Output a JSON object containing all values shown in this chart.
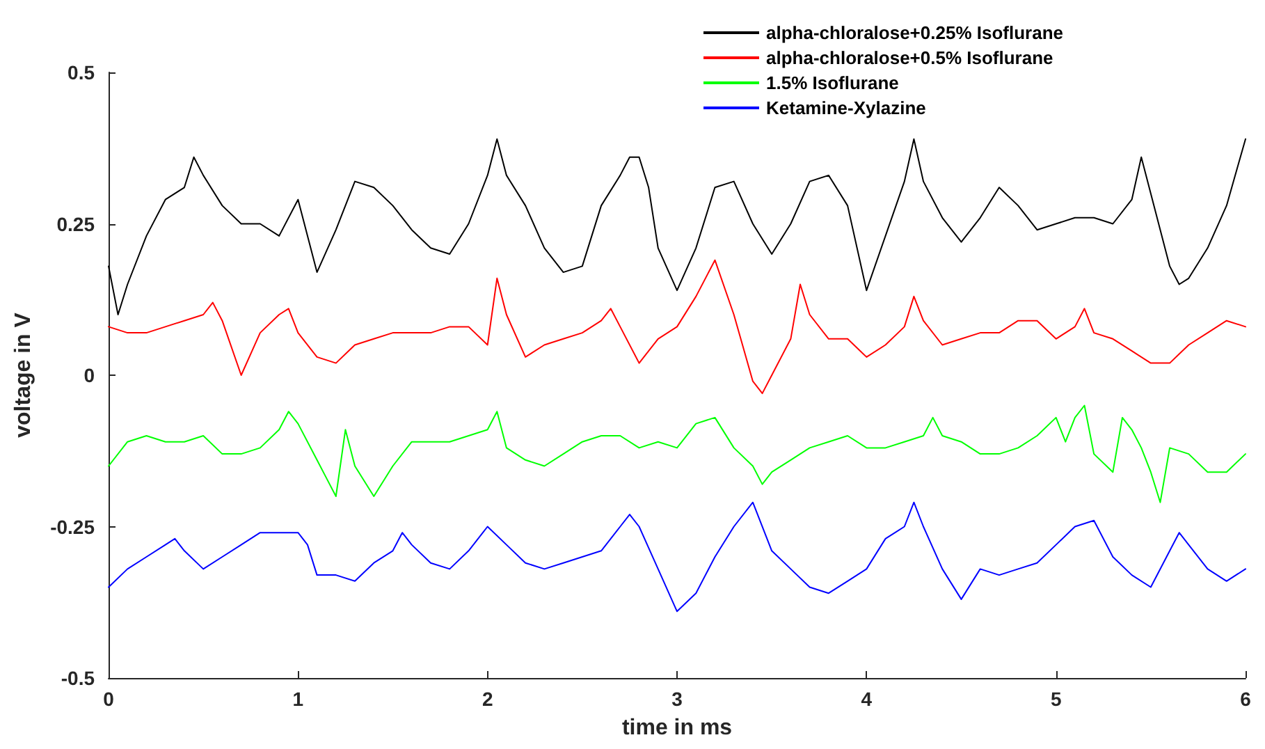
{
  "chart_data": {
    "type": "line",
    "xlabel": "time in ms",
    "ylabel": "voltage in V",
    "xlim": [
      0,
      6
    ],
    "ylim": [
      -0.5,
      0.5
    ],
    "xticks": [
      0,
      1,
      2,
      3,
      4,
      5,
      6
    ],
    "yticks": [
      -0.5,
      -0.25,
      0,
      0.25,
      0.5
    ],
    "legend": "top right",
    "marker": "none",
    "series": [
      {
        "name": "alpha-chloralose+0.25% Isoflurane",
        "color": "#000000",
        "x": [
          0,
          0.05,
          0.1,
          0.2,
          0.3,
          0.4,
          0.45,
          0.5,
          0.6,
          0.7,
          0.8,
          0.9,
          1.0,
          1.1,
          1.2,
          1.3,
          1.4,
          1.5,
          1.6,
          1.7,
          1.8,
          1.9,
          2.0,
          2.05,
          2.1,
          2.2,
          2.3,
          2.4,
          2.5,
          2.6,
          2.7,
          2.75,
          2.8,
          2.85,
          2.9,
          3.0,
          3.1,
          3.2,
          3.3,
          3.4,
          3.5,
          3.6,
          3.7,
          3.8,
          3.9,
          4.0,
          4.1,
          4.2,
          4.25,
          4.3,
          4.4,
          4.5,
          4.6,
          4.7,
          4.8,
          4.9,
          5.0,
          5.1,
          5.2,
          5.3,
          5.4,
          5.45,
          5.5,
          5.6,
          5.65,
          5.7,
          5.8,
          5.9,
          6.0
        ],
        "values": [
          0.18,
          0.1,
          0.15,
          0.23,
          0.29,
          0.31,
          0.36,
          0.33,
          0.28,
          0.25,
          0.25,
          0.23,
          0.29,
          0.17,
          0.24,
          0.32,
          0.31,
          0.28,
          0.24,
          0.21,
          0.2,
          0.25,
          0.33,
          0.39,
          0.33,
          0.28,
          0.21,
          0.17,
          0.18,
          0.28,
          0.33,
          0.36,
          0.36,
          0.31,
          0.21,
          0.14,
          0.21,
          0.31,
          0.32,
          0.25,
          0.2,
          0.25,
          0.32,
          0.33,
          0.28,
          0.14,
          0.23,
          0.32,
          0.39,
          0.32,
          0.26,
          0.22,
          0.26,
          0.31,
          0.28,
          0.24,
          0.25,
          0.26,
          0.26,
          0.25,
          0.29,
          0.36,
          0.3,
          0.18,
          0.15,
          0.16,
          0.21,
          0.28,
          0.39
        ]
      },
      {
        "name": "alpha-chloralose+0.5% Isoflurane",
        "color": "#ff0000",
        "x": [
          0,
          0.1,
          0.2,
          0.3,
          0.4,
          0.5,
          0.55,
          0.6,
          0.7,
          0.8,
          0.9,
          0.95,
          1.0,
          1.1,
          1.2,
          1.3,
          1.4,
          1.5,
          1.6,
          1.7,
          1.8,
          1.9,
          2.0,
          2.05,
          2.1,
          2.2,
          2.3,
          2.4,
          2.5,
          2.6,
          2.65,
          2.7,
          2.8,
          2.9,
          3.0,
          3.1,
          3.2,
          3.3,
          3.4,
          3.45,
          3.5,
          3.6,
          3.65,
          3.7,
          3.8,
          3.9,
          4.0,
          4.1,
          4.2,
          4.25,
          4.3,
          4.4,
          4.5,
          4.6,
          4.7,
          4.8,
          4.9,
          5.0,
          5.1,
          5.15,
          5.2,
          5.3,
          5.4,
          5.5,
          5.6,
          5.7,
          5.8,
          5.9,
          6.0
        ],
        "values": [
          0.08,
          0.07,
          0.07,
          0.08,
          0.09,
          0.1,
          0.12,
          0.09,
          0.0,
          0.07,
          0.1,
          0.11,
          0.07,
          0.03,
          0.02,
          0.05,
          0.06,
          0.07,
          0.07,
          0.07,
          0.08,
          0.08,
          0.05,
          0.16,
          0.1,
          0.03,
          0.05,
          0.06,
          0.07,
          0.09,
          0.11,
          0.08,
          0.02,
          0.06,
          0.08,
          0.13,
          0.19,
          0.1,
          -0.01,
          -0.03,
          0.0,
          0.06,
          0.15,
          0.1,
          0.06,
          0.06,
          0.03,
          0.05,
          0.08,
          0.13,
          0.09,
          0.05,
          0.06,
          0.07,
          0.07,
          0.09,
          0.09,
          0.06,
          0.08,
          0.11,
          0.07,
          0.06,
          0.04,
          0.02,
          0.02,
          0.05,
          0.07,
          0.09,
          0.08
        ]
      },
      {
        "name": "1.5% Isoflurane",
        "color": "#00ff00",
        "x": [
          0,
          0.1,
          0.2,
          0.3,
          0.4,
          0.5,
          0.6,
          0.7,
          0.8,
          0.9,
          0.95,
          1.0,
          1.1,
          1.15,
          1.2,
          1.25,
          1.3,
          1.4,
          1.5,
          1.6,
          1.7,
          1.8,
          1.9,
          2.0,
          2.05,
          2.1,
          2.2,
          2.3,
          2.4,
          2.5,
          2.6,
          2.7,
          2.8,
          2.9,
          3.0,
          3.1,
          3.2,
          3.3,
          3.4,
          3.45,
          3.5,
          3.6,
          3.7,
          3.8,
          3.9,
          4.0,
          4.1,
          4.2,
          4.3,
          4.35,
          4.4,
          4.5,
          4.6,
          4.7,
          4.8,
          4.9,
          5.0,
          5.05,
          5.1,
          5.15,
          5.2,
          5.3,
          5.35,
          5.4,
          5.45,
          5.5,
          5.55,
          5.6,
          5.7,
          5.8,
          5.9,
          6.0
        ],
        "values": [
          -0.15,
          -0.11,
          -0.1,
          -0.11,
          -0.11,
          -0.1,
          -0.13,
          -0.13,
          -0.12,
          -0.09,
          -0.06,
          -0.08,
          -0.14,
          -0.17,
          -0.2,
          -0.09,
          -0.15,
          -0.2,
          -0.15,
          -0.11,
          -0.11,
          -0.11,
          -0.1,
          -0.09,
          -0.06,
          -0.12,
          -0.14,
          -0.15,
          -0.13,
          -0.11,
          -0.1,
          -0.1,
          -0.12,
          -0.11,
          -0.12,
          -0.08,
          -0.07,
          -0.12,
          -0.15,
          -0.18,
          -0.16,
          -0.14,
          -0.12,
          -0.11,
          -0.1,
          -0.12,
          -0.12,
          -0.11,
          -0.1,
          -0.07,
          -0.1,
          -0.11,
          -0.13,
          -0.13,
          -0.12,
          -0.1,
          -0.07,
          -0.11,
          -0.07,
          -0.05,
          -0.13,
          -0.16,
          -0.07,
          -0.09,
          -0.12,
          -0.16,
          -0.21,
          -0.12,
          -0.13,
          -0.16,
          -0.16,
          -0.13
        ]
      },
      {
        "name": "Ketamine-Xylazine",
        "color": "#0000ff",
        "x": [
          0,
          0.1,
          0.2,
          0.3,
          0.35,
          0.4,
          0.5,
          0.6,
          0.7,
          0.8,
          0.9,
          1.0,
          1.05,
          1.1,
          1.2,
          1.3,
          1.4,
          1.5,
          1.55,
          1.6,
          1.7,
          1.8,
          1.9,
          2.0,
          2.1,
          2.2,
          2.3,
          2.4,
          2.5,
          2.6,
          2.7,
          2.75,
          2.8,
          2.9,
          3.0,
          3.1,
          3.2,
          3.3,
          3.4,
          3.5,
          3.6,
          3.7,
          3.8,
          3.9,
          4.0,
          4.1,
          4.2,
          4.25,
          4.3,
          4.4,
          4.5,
          4.6,
          4.7,
          4.8,
          4.9,
          5.0,
          5.1,
          5.2,
          5.3,
          5.4,
          5.5,
          5.6,
          5.65,
          5.7,
          5.8,
          5.9,
          6.0
        ],
        "values": [
          -0.35,
          -0.32,
          -0.3,
          -0.28,
          -0.27,
          -0.29,
          -0.32,
          -0.3,
          -0.28,
          -0.26,
          -0.26,
          -0.26,
          -0.28,
          -0.33,
          -0.33,
          -0.34,
          -0.31,
          -0.29,
          -0.26,
          -0.28,
          -0.31,
          -0.32,
          -0.29,
          -0.25,
          -0.28,
          -0.31,
          -0.32,
          -0.31,
          -0.3,
          -0.29,
          -0.25,
          -0.23,
          -0.25,
          -0.32,
          -0.39,
          -0.36,
          -0.3,
          -0.25,
          -0.21,
          -0.29,
          -0.32,
          -0.35,
          -0.36,
          -0.34,
          -0.32,
          -0.27,
          -0.25,
          -0.21,
          -0.25,
          -0.32,
          -0.37,
          -0.32,
          -0.33,
          -0.32,
          -0.31,
          -0.28,
          -0.25,
          -0.24,
          -0.3,
          -0.33,
          -0.35,
          -0.29,
          -0.26,
          -0.28,
          -0.32,
          -0.34,
          -0.32
        ]
      }
    ]
  }
}
